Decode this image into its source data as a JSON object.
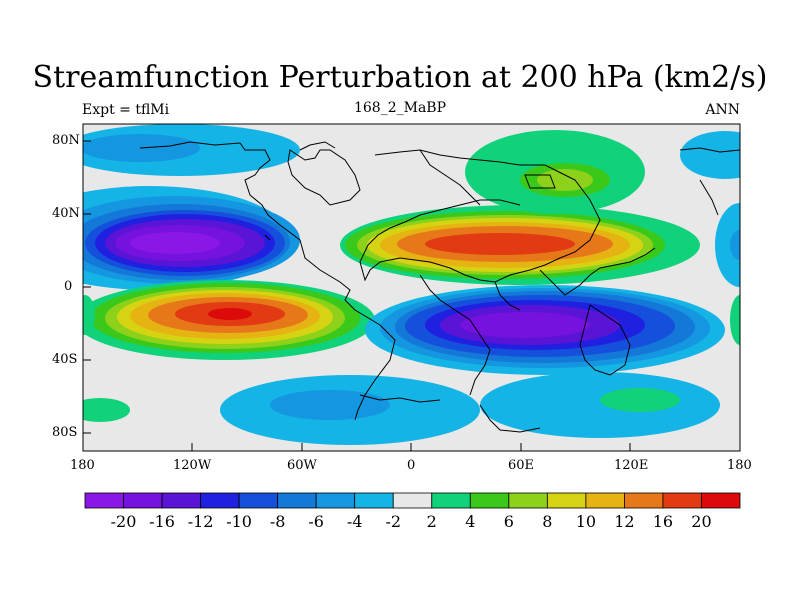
{
  "title": "Streamfunction Perturbation at 200 hPa (km2/s)",
  "left_string": "Expt = tflMi",
  "center_string": "168_2_MaBP",
  "right_string": "ANN",
  "lat_labels": [
    "80N",
    "40N",
    "0",
    "40S",
    "80S"
  ],
  "lon_labels": [
    "180",
    "120W",
    "60W",
    "0",
    "60E",
    "120E",
    "180"
  ],
  "colorbar": {
    "labels": [
      "-20",
      "-16",
      "-12",
      "-10",
      "-8",
      "-6",
      "-4",
      "-2",
      "2",
      "4",
      "6",
      "8",
      "10",
      "12",
      "16",
      "20"
    ],
    "colors": [
      "#8a17e6",
      "#7512df",
      "#5a14d6",
      "#2020e0",
      "#1450dc",
      "#1478d8",
      "#1496e0",
      "#14b4e6",
      "#e8e8e8",
      "#10d27a",
      "#3ac81a",
      "#8ed11a",
      "#d6d412",
      "#e6b412",
      "#e6781a",
      "#e23a12",
      "#dc0a0a"
    ]
  }
}
